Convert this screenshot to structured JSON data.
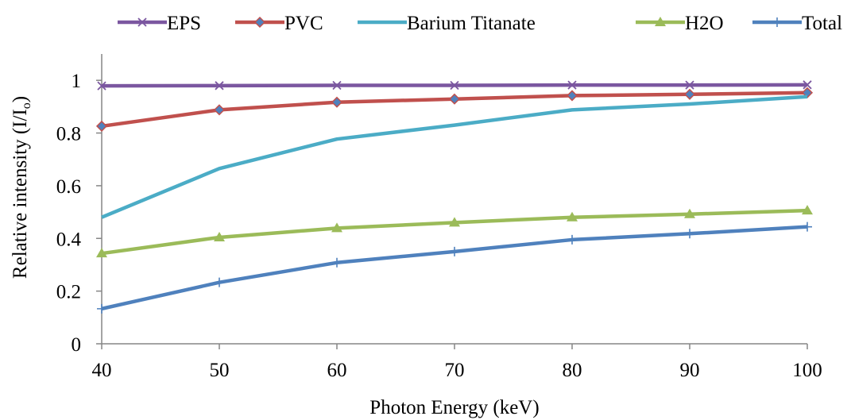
{
  "chart_data": {
    "type": "line",
    "x": [
      40,
      50,
      60,
      70,
      80,
      90,
      100
    ],
    "xlabel": "Photon Energy (keV)",
    "ylabel_main": "Relative intensity (I/I",
    "ylabel_sub": "o",
    "ylabel_close": ")",
    "xlim": [
      40,
      100
    ],
    "ylim": [
      0,
      1.1
    ],
    "xticks": [
      "40",
      "50",
      "60",
      "70",
      "80",
      "90",
      "100"
    ],
    "yticks": [
      "0",
      "0.2",
      "0.4",
      "0.6",
      "0.8",
      "1"
    ],
    "legend_position": "top",
    "grid": false,
    "series": [
      {
        "name": "EPS",
        "color": "#7b57a0",
        "marker": "x-icon",
        "values": [
          0.979,
          0.98,
          0.981,
          0.981,
          0.982,
          0.982,
          0.983
        ]
      },
      {
        "name": "PVC",
        "color": "#c0504d",
        "marker": "diamond-icon",
        "values": [
          0.826,
          0.888,
          0.917,
          0.929,
          0.942,
          0.947,
          0.953
        ]
      },
      {
        "name": "Barium Titanate",
        "color": "#4bacc6",
        "marker": "none",
        "values": [
          0.48,
          0.665,
          0.777,
          0.83,
          0.888,
          0.91,
          0.938
        ]
      },
      {
        "name": "H2O",
        "color": "#9bbb59",
        "marker": "triangle-icon",
        "values": [
          0.343,
          0.404,
          0.439,
          0.46,
          0.48,
          0.492,
          0.506
        ]
      },
      {
        "name": "Total",
        "color": "#4f81bd",
        "marker": "plus-icon",
        "values": [
          0.133,
          0.233,
          0.308,
          0.35,
          0.395,
          0.418,
          0.444
        ]
      }
    ]
  }
}
